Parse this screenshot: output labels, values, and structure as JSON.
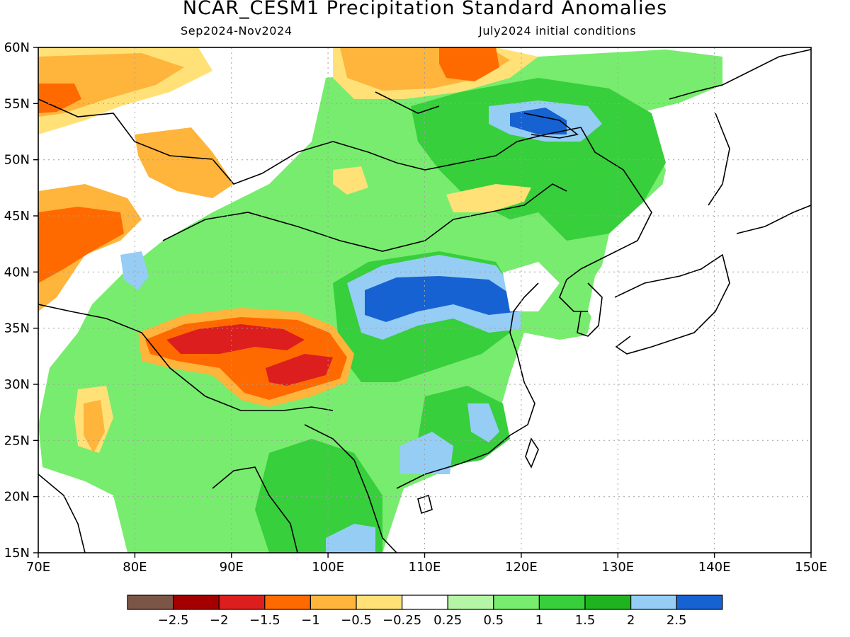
{
  "title": "NCAR_CESM1 Precipitation Standard Anomalies",
  "period": "Sep2024-Nov2024",
  "init": "July2024 initial conditions",
  "map": {
    "lon_range": [
      70,
      150
    ],
    "lat_range": [
      15,
      60
    ],
    "x_ticks": [
      "70E",
      "80E",
      "90E",
      "100E",
      "110E",
      "120E",
      "130E",
      "140E",
      "150E"
    ],
    "y_ticks": [
      "60N",
      "55N",
      "50N",
      "45N",
      "40N",
      "35N",
      "30N",
      "25N",
      "20N",
      "15N"
    ]
  },
  "colorbar": {
    "colors": [
      "#7b5546",
      "#a50000",
      "#dc1e1e",
      "#ff6a00",
      "#ffb43c",
      "#ffe178",
      "#ffffff",
      "#b5f5a6",
      "#78ec6e",
      "#37cf3c",
      "#1fb41f",
      "#95cdf5",
      "#1662d2"
    ],
    "labels": [
      "-2.5",
      "-2",
      "-1.5",
      "-1",
      "-0.5",
      "-0.25",
      "0.25",
      "0.5",
      "1",
      "1.5",
      "2",
      "2.5"
    ]
  }
}
